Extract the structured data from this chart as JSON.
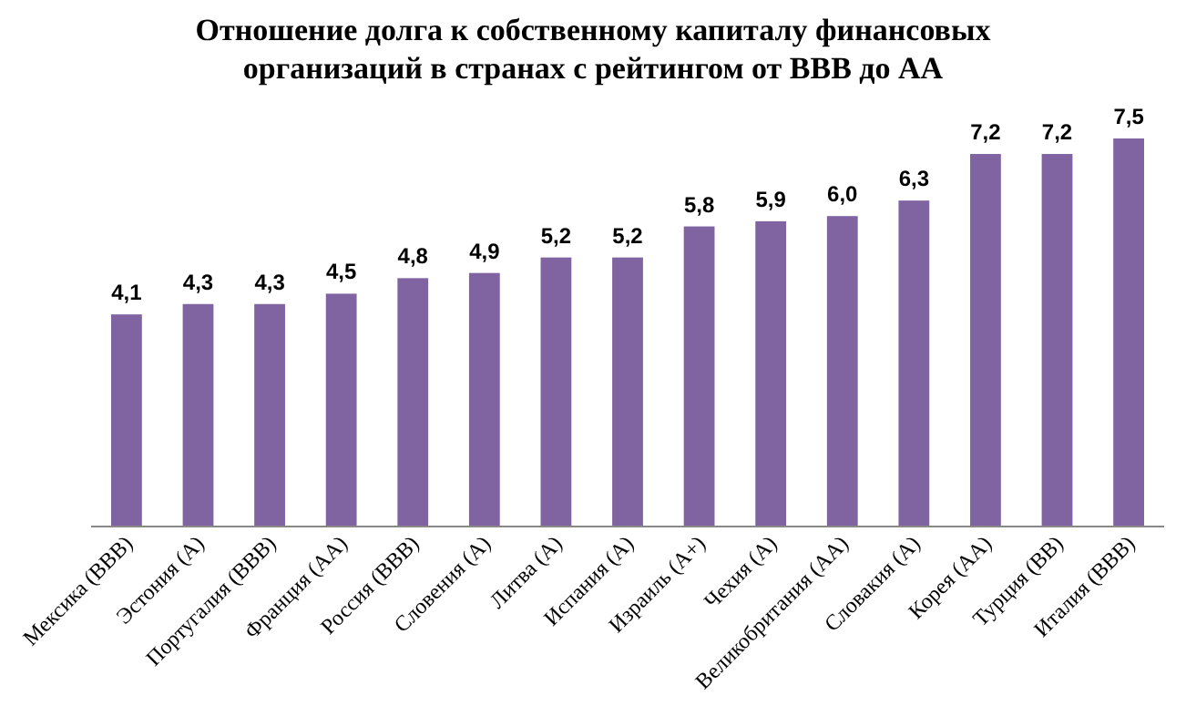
{
  "chart_data": {
    "type": "bar",
    "title": "Отношение долга к собственному капиталу финансовых\nорганизаций в странах с рейтингом от BBB до AA",
    "categories": [
      "Мексика (BBB)",
      "Эстония (A)",
      "Португалия (BBB)",
      "Франция (AA)",
      "Россия (BBB)",
      "Словения (A)",
      "Литва (A)",
      "Испания (A)",
      "Израиль (A+)",
      "Чехия (A)",
      "Великобритания (AA)",
      "Словакия (A)",
      "Корея (AA)",
      "Турция (BB)",
      "Италия (BBB)"
    ],
    "values": [
      4.1,
      4.3,
      4.3,
      4.5,
      4.8,
      4.9,
      5.2,
      5.2,
      5.8,
      5.9,
      6.0,
      6.3,
      7.2,
      7.2,
      7.5
    ],
    "value_labels": [
      "4,1",
      "4,3",
      "4,3",
      "4,5",
      "4,8",
      "4,9",
      "5,2",
      "5,2",
      "5,8",
      "5,9",
      "6,0",
      "6,3",
      "7,2",
      "7,2",
      "7,5"
    ],
    "color": "#8064a2"
  }
}
